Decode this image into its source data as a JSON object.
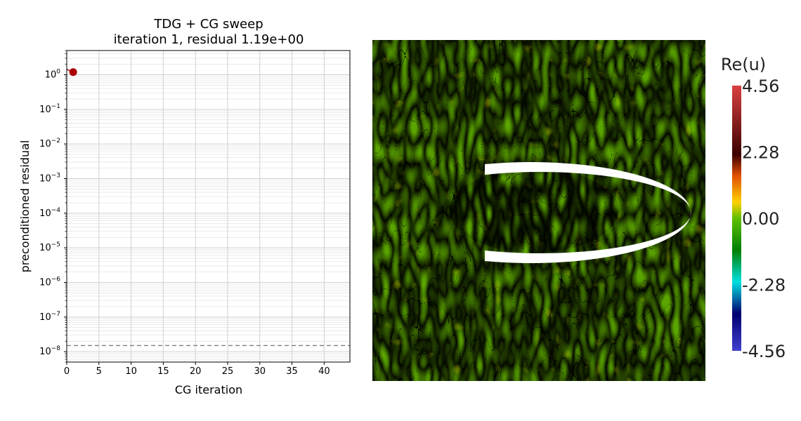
{
  "chart_data": [
    {
      "type": "scatter",
      "title": "TDG + CG sweep",
      "subtitle": "iteration 1, residual 1.19e+00",
      "xlabel": "CG iteration",
      "ylabel": "preconditioned residual",
      "x_ticks": [
        0,
        5,
        10,
        15,
        20,
        25,
        30,
        35,
        40
      ],
      "xlim": [
        0,
        44
      ],
      "y_scale": "log",
      "y_tick_exponents": [
        0,
        -1,
        -2,
        -3,
        -4,
        -5,
        -6,
        -7,
        -8
      ],
      "ylim": [
        5e-09,
        5
      ],
      "grid": true,
      "points": [
        {
          "x": 1,
          "y": 1.19
        }
      ],
      "point_color": "#aa0000",
      "threshold_line": 1.5e-08,
      "threshold_color": "#808080"
    },
    {
      "type": "heatmap",
      "colorbar_title": "Re(u)",
      "colorbar_ticks": [
        "4.56",
        "2.28",
        "0.00",
        "-2.28",
        "-4.56"
      ],
      "colormap": [
        "#d94040",
        "#3d0000",
        "#e05000",
        "#ffd000",
        "#60c000",
        "#008000",
        "#00e0e0",
        "#000070",
        "#4040d0"
      ]
    }
  ]
}
